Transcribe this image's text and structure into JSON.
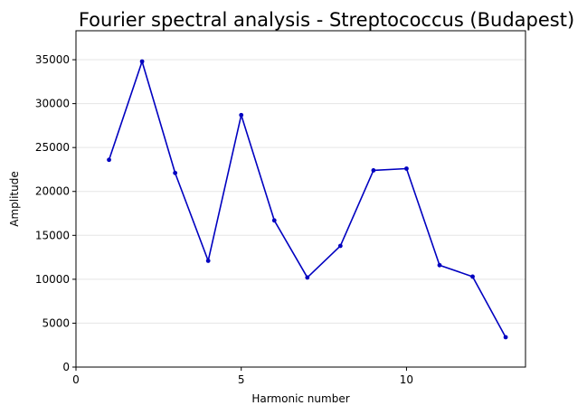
{
  "chart_data": {
    "type": "line",
    "title": "Fourier spectral analysis - Streptococcus (Budapest)",
    "xlabel": "Harmonic number",
    "ylabel": "Amplitude",
    "x": [
      1,
      2,
      3,
      4,
      5,
      6,
      7,
      8,
      9,
      10,
      11,
      12,
      13
    ],
    "series": [
      {
        "values": [
          23600,
          34800,
          22100,
          12100,
          28700,
          16700,
          10200,
          13800,
          22400,
          22600,
          11600,
          10300,
          3400
        ],
        "color": "#0000c0",
        "marker": "circle"
      }
    ],
    "xlim": [
      0,
      13.6
    ],
    "ylim": [
      0,
      38300
    ],
    "xticks": [
      0,
      5,
      10
    ],
    "xtick_labels": [
      "0",
      "5",
      "10"
    ],
    "yticks": [
      0,
      5000,
      10000,
      15000,
      20000,
      25000,
      30000,
      35000
    ],
    "ytick_labels": [
      "0",
      "5000",
      "10000",
      "15000",
      "20000",
      "25000",
      "30000",
      "35000"
    ],
    "grid": "horizontal",
    "legend": "none"
  }
}
